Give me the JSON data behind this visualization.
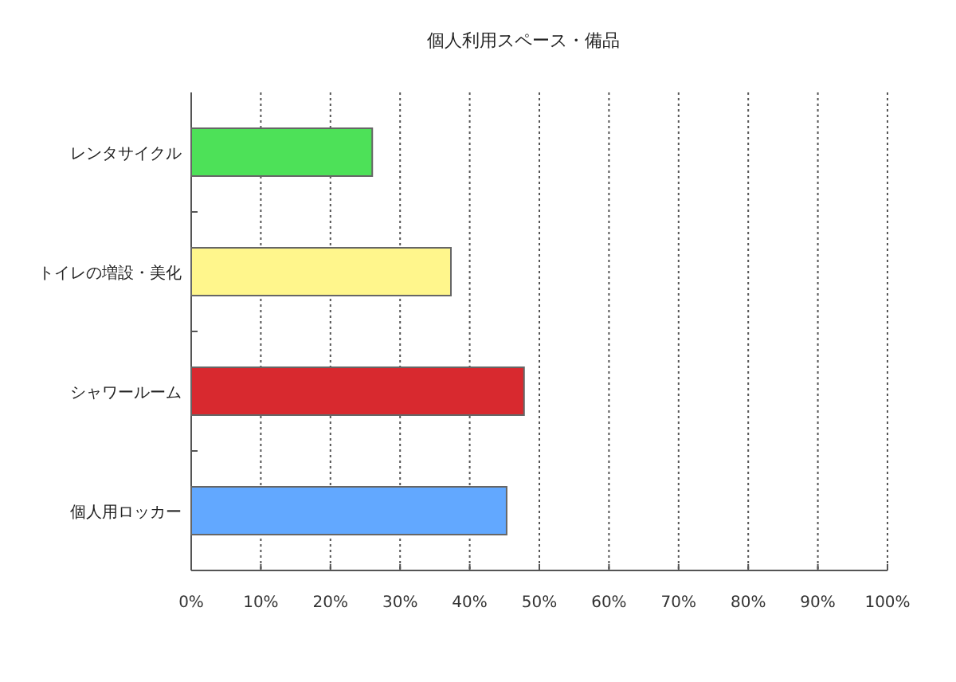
{
  "chart_data": {
    "type": "bar",
    "orientation": "horizontal",
    "title": "個人利用スペース・備品",
    "categories": [
      "レンタサイクル",
      "トイレの増設・美化",
      "シャワールーム",
      "個人用ロッカー"
    ],
    "values": [
      26.0,
      37.3,
      47.8,
      45.3
    ],
    "colors": [
      "#4de158",
      "#fff68c",
      "#d8292f",
      "#62a8ff"
    ],
    "xlim": [
      0,
      100
    ],
    "xticks": [
      {
        "value": 0,
        "label": "0%"
      },
      {
        "value": 10,
        "label": "10%"
      },
      {
        "value": 20,
        "label": "20%"
      },
      {
        "value": 30,
        "label": "30%"
      },
      {
        "value": 40,
        "label": "40%"
      },
      {
        "value": 50,
        "label": "50%"
      },
      {
        "value": 60,
        "label": "60%"
      },
      {
        "value": 70,
        "label": "70%"
      },
      {
        "value": 80,
        "label": "80%"
      },
      {
        "value": 90,
        "label": "90%"
      },
      {
        "value": 100,
        "label": "100%"
      }
    ],
    "grid": "x"
  }
}
